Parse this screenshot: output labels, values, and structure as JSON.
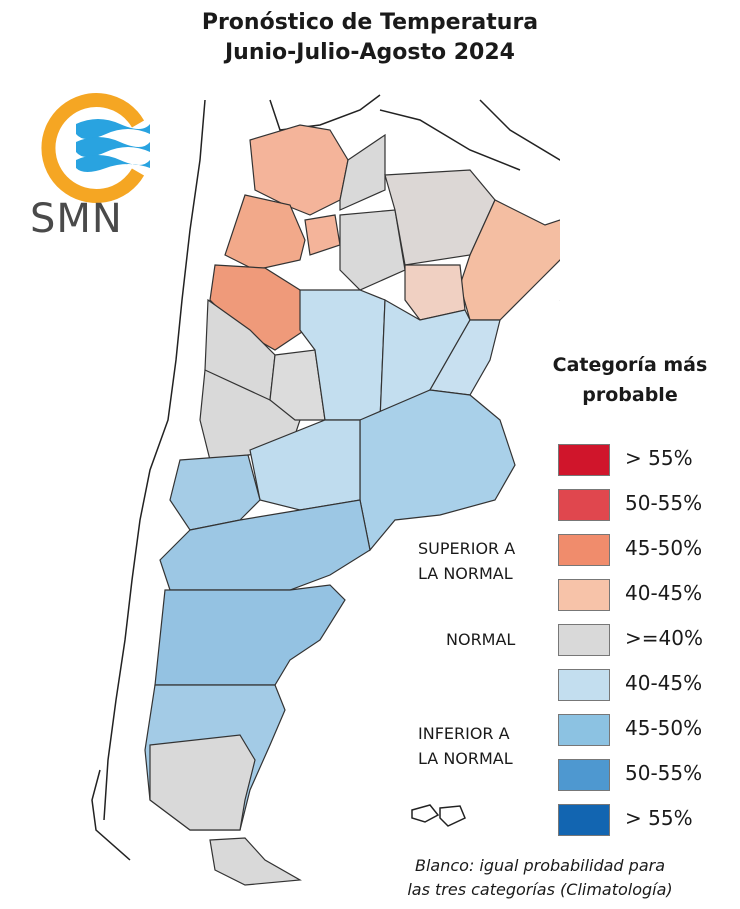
{
  "header": {
    "title_line1": "Pronóstico de Temperatura",
    "title_line2": "Junio-Julio-Agosto 2024"
  },
  "logo": {
    "text": "SMN",
    "ring_color": "#F5A623",
    "wave_color": "#29A3E0"
  },
  "legend": {
    "title_line1": "Categoría más",
    "title_line2": "probable",
    "items": [
      {
        "label": "> 55%",
        "color": "#D0152B"
      },
      {
        "label": "50-55%",
        "color": "#E0474E"
      },
      {
        "label": "45-50%",
        "color": "#F08C6C"
      },
      {
        "label": "40-45%",
        "color": "#F7C3A9"
      },
      {
        "label": ">=40%",
        "color": "#D9D9D9"
      },
      {
        "label": "40-45%",
        "color": "#C3DEEF"
      },
      {
        "label": "45-50%",
        "color": "#8CC2E2"
      },
      {
        "label": "50-55%",
        "color": "#4E98D0"
      },
      {
        "label": "> 55%",
        "color": "#1265B1"
      }
    ],
    "groups": {
      "superior_line1": "SUPERIOR A",
      "superior_line2": "LA NORMAL",
      "normal": "NORMAL",
      "inferior_line1": "INFERIOR A",
      "inferior_line2": "LA NORMAL"
    }
  },
  "footnote": {
    "line1": "Blanco: igual probabilidad para",
    "line2": "las tres categorías (Climatología)"
  }
}
